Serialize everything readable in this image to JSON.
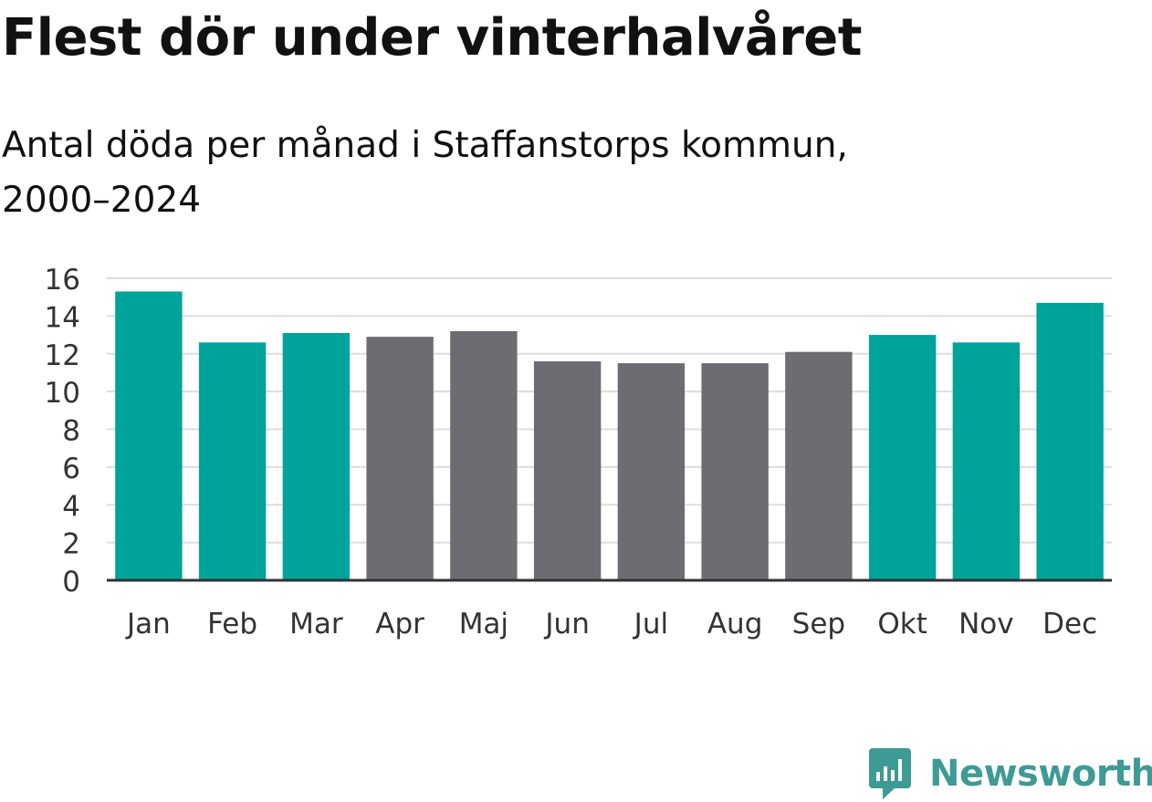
{
  "chart_data": {
    "type": "bar",
    "title": "Flest dör under vinterhalvåret",
    "subtitle": [
      "Antal döda per månad i Staffanstorps kommun,",
      "2000–2024"
    ],
    "xlabel": "",
    "ylabel": "",
    "categories": [
      "Jan",
      "Feb",
      "Mar",
      "Apr",
      "Maj",
      "Jun",
      "Jul",
      "Aug",
      "Sep",
      "Okt",
      "Nov",
      "Dec"
    ],
    "values": [
      15.3,
      12.6,
      13.1,
      12.9,
      13.2,
      11.6,
      11.5,
      11.5,
      12.1,
      13.0,
      12.6,
      14.7
    ],
    "highlight": [
      true,
      true,
      true,
      false,
      false,
      false,
      false,
      false,
      false,
      true,
      true,
      true
    ],
    "ylim": [
      0,
      16
    ],
    "yticks": [
      "0",
      "2",
      "4",
      "6",
      "8",
      "10",
      "12",
      "14",
      "16"
    ],
    "grid": true,
    "legend": "none",
    "colors": {
      "highlight": "#00a39a",
      "normal": "#6d6c72",
      "grid": "#dddddd",
      "axis": "#333333",
      "text": "#333333"
    }
  },
  "brand": {
    "name": "Newsworthy",
    "color": "#3e9a94"
  }
}
